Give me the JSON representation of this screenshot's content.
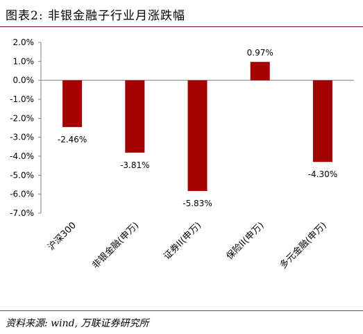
{
  "header": {
    "title": "图表2: 非银金融子行业月涨跌幅"
  },
  "footer": {
    "source": "资料来源: wind, 万联证券研究所"
  },
  "chart_data": {
    "type": "bar",
    "categories": [
      "沪深300",
      "非银金融(申万)",
      "证券II(申万)",
      "保险II(申万)",
      "多元金融(申万)"
    ],
    "values": [
      -2.46,
      -3.81,
      -5.83,
      0.97,
      -4.3
    ],
    "data_labels": [
      "-2.46%",
      "-3.81%",
      "-5.83%",
      "0.97%",
      "-4.30%"
    ],
    "ylim": [
      -7.0,
      2.0
    ],
    "yticks": [
      2.0,
      1.0,
      0.0,
      -1.0,
      -2.0,
      -3.0,
      -4.0,
      -5.0,
      -6.0,
      -7.0
    ],
    "ytick_labels": [
      "2.0%",
      "1.0%",
      "0.0%",
      "-1.0%",
      "-2.0%",
      "-3.0%",
      "-4.0%",
      "-5.0%",
      "-6.0%",
      "-7.0%"
    ],
    "bar_color": "#a50000",
    "grid": false,
    "legend": "none"
  }
}
